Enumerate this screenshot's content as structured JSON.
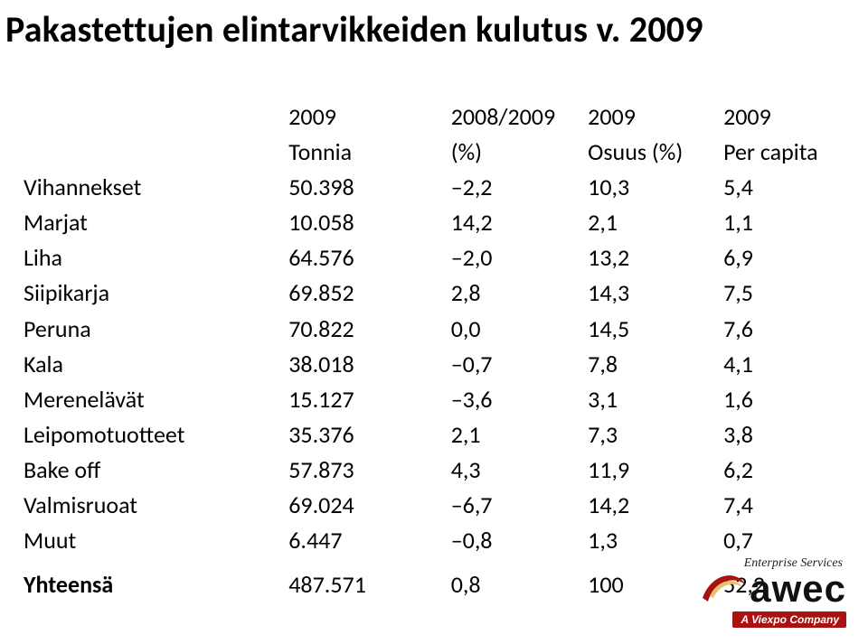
{
  "title": "Pakastettujen elintarvikkeiden kulutus v. 2009",
  "header": {
    "years": {
      "c1": "2009",
      "c2": "2008/2009",
      "c3": "2009",
      "c4": "2009"
    },
    "labels": {
      "c1": "Tonnia",
      "c2": "(%)",
      "c3": "Osuus (%)",
      "c4": "Per capita"
    }
  },
  "rows": [
    {
      "label": "Vihannekset",
      "tonnia": "50.398",
      "pct": "–2,2",
      "share": "10,3",
      "cap": "5,4"
    },
    {
      "label": "Marjat",
      "tonnia": "10.058",
      "pct": "14,2",
      "share": "2,1",
      "cap": "1,1"
    },
    {
      "label": "Liha",
      "tonnia": "64.576",
      "pct": "–2,0",
      "share": " 13,2",
      "cap": "6,9"
    },
    {
      "label": "Siipikarja",
      "tonnia": "69.852",
      "pct": "2,8",
      "share": "14,3",
      "cap": "7,5"
    },
    {
      "label": "Peruna",
      "tonnia": "70.822",
      "pct": "0,0",
      "share": "14,5",
      "cap": "7,6"
    },
    {
      "label": "Kala",
      "tonnia": "38.018",
      "pct": "–0,7",
      "share": "7,8",
      "cap": "4,1"
    },
    {
      "label": "Merenelävät",
      "tonnia": "15.127",
      "pct": "–3,6",
      "share": "3,1",
      "cap": " 1,6"
    },
    {
      "label": "Leipomotuotteet",
      "tonnia": "35.376",
      "pct": "2,1",
      "share": "7,3",
      "cap": "3,8"
    },
    {
      "label": "Bake off",
      "tonnia": "57.873",
      "pct": "4,3",
      "share": "11,9",
      "cap": "6,2"
    },
    {
      "label": "Valmisruoat",
      "tonnia": "69.024",
      "pct": "–6,7",
      "share": "14,2",
      "cap": "7,4"
    },
    {
      "label": "Muut",
      "tonnia": "6.447",
      "pct": "–0,8",
      "share": "1,3",
      "cap": "0,7"
    }
  ],
  "total": {
    "label": "Yhteensä",
    "tonnia": "487.571",
    "pct": "0,8",
    "share": "100",
    "cap": "52,2"
  },
  "logo": {
    "top": "Enterprise Services",
    "text": "awec",
    "sub": "A Viexpo Company",
    "swoosh_outer": "#a11",
    "swoosh_inner": "#e6c36a"
  },
  "style": {
    "title_fontsize": 40,
    "table_fontsize": 26,
    "bg": "#ffffff",
    "text": "#000000"
  }
}
